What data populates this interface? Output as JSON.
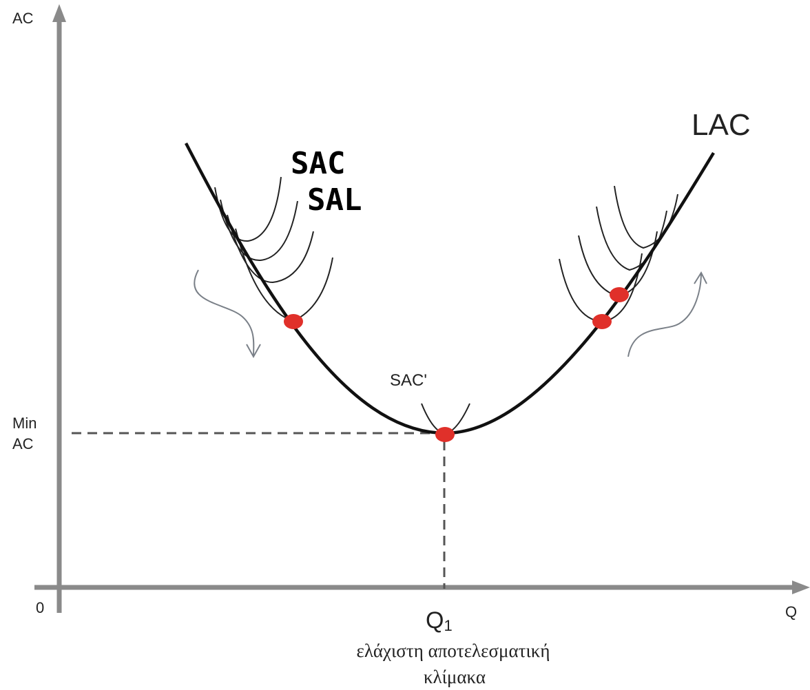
{
  "axes": {
    "y_label": "AC",
    "x_label": "Q",
    "origin_label": "0"
  },
  "curves": {
    "lac_label": "LAC",
    "sac_min_label": "SAC'",
    "handwritten_labels": [
      "SAC",
      "SAL"
    ]
  },
  "markers": {
    "min_ac_label_line1": "Min",
    "min_ac_label_line2": "AC",
    "q1_label": "Q",
    "q1_subscript": "1",
    "q1_caption_line1": "ελάχιστη αποτελεσματική",
    "q1_caption_line2": "κλίμακα"
  },
  "colors": {
    "axis": "#8a8a8a",
    "curve": "#111111",
    "point": "#e0302a",
    "arrow": "#7a8088"
  }
}
